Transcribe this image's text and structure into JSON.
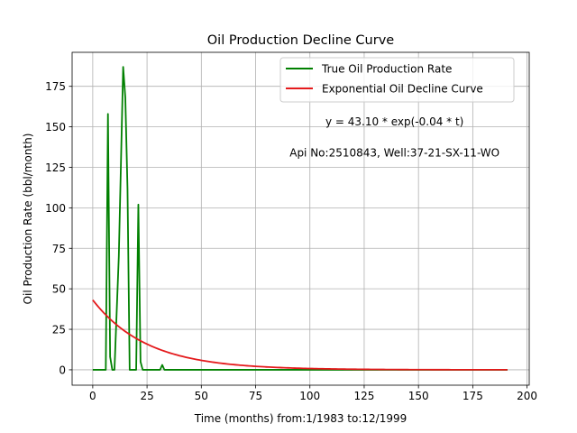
{
  "chart_data": {
    "type": "line",
    "title": "Oil Production Decline Curve",
    "xlabel": "Time (months) from:1/1983 to:12/1999",
    "ylabel": "Oil Production Rate (bbl/month)",
    "xlim": [
      -9.5,
      201
    ],
    "ylim": [
      -9.5,
      196
    ],
    "xticks": [
      0,
      25,
      50,
      75,
      100,
      125,
      150,
      175,
      200
    ],
    "yticks": [
      0,
      25,
      50,
      75,
      100,
      125,
      150,
      175
    ],
    "grid": true,
    "legend_position": "top-right",
    "annotations": [
      {
        "text": "y = 43.10 * exp(-0.04 * t)",
        "x": 139,
        "y": 153
      },
      {
        "text": "Api No:2510843, Well:37-21-SX-11-WO",
        "x": 139,
        "y": 134
      }
    ],
    "series": [
      {
        "name": "True Oil Production Rate",
        "color": "#008000",
        "x": [
          0,
          6,
          7,
          8,
          9,
          10,
          12,
          14,
          15,
          16,
          17,
          18,
          19,
          20,
          21,
          22,
          23,
          24,
          30,
          31,
          32,
          33,
          34,
          191
        ],
        "y": [
          0,
          0,
          158,
          8,
          0,
          0,
          70,
          187,
          168,
          112,
          0,
          0,
          0,
          0,
          102,
          5,
          0,
          0,
          0,
          0,
          3,
          0,
          0,
          0
        ]
      },
      {
        "name": "Exponential Oil Decline Curve",
        "color": "#e41a1c",
        "model": {
          "a": 43.1,
          "b": 0.04,
          "x_min": 0,
          "x_max": 191
        }
      }
    ]
  }
}
